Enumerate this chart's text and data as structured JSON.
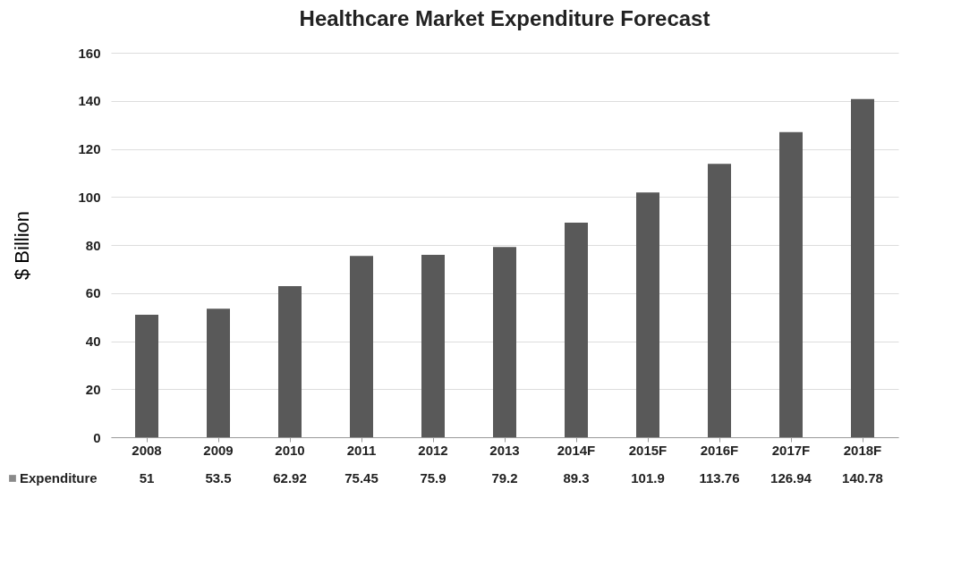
{
  "chart_data": {
    "type": "bar",
    "title": "Healthcare Market Expenditure Forecast",
    "ylabel": "$ Billion",
    "categories": [
      "2008",
      "2009",
      "2010",
      "2011",
      "2012",
      "2013",
      "2014F",
      "2015F",
      "2016F",
      "2017F",
      "2018F"
    ],
    "series": [
      {
        "name": "Expenditure",
        "color": "#595959",
        "values": [
          51,
          53.5,
          62.92,
          75.45,
          75.9,
          79.2,
          89.3,
          101.9,
          113.76,
          126.94,
          140.78
        ]
      }
    ],
    "ylim": [
      0,
      160
    ],
    "yticks": [
      0,
      20,
      40,
      60,
      80,
      100,
      120,
      140,
      160
    ],
    "grid": "y",
    "legend": "bottom",
    "data_labels": true
  }
}
